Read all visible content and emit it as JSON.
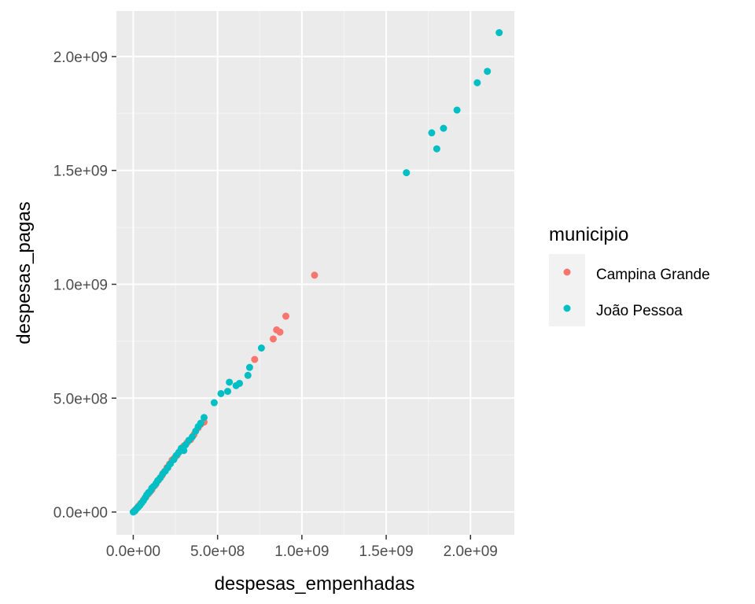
{
  "chart_data": {
    "type": "scatter",
    "title": "",
    "xlabel": "despesas_empenhadas",
    "ylabel": "despesas_pagas",
    "xlim": [
      -100000000.0,
      2260000000.0
    ],
    "ylim": [
      -100000000.0,
      2200000000.0
    ],
    "x_ticks": [
      0,
      500000000,
      1000000000,
      1500000000,
      2000000000
    ],
    "x_tick_labels": [
      "0.0e+00",
      "5.0e+08",
      "1.0e+09",
      "1.5e+09",
      "2.0e+09"
    ],
    "y_ticks": [
      0,
      500000000,
      1000000000,
      1500000000,
      2000000000
    ],
    "y_tick_labels": [
      "0.0e+00",
      "5.0e+08",
      "1.0e+09",
      "1.5e+09",
      "2.0e+09"
    ],
    "grid": true,
    "legend_title": "municipio",
    "legend_position": "right",
    "series": [
      {
        "name": "Campina Grande",
        "color": "#F8766D",
        "points": [
          [
            5000000,
            3000000
          ],
          [
            12000000,
            9000000
          ],
          [
            20000000,
            15000000
          ],
          [
            30000000,
            25000000
          ],
          [
            45000000,
            38000000
          ],
          [
            60000000,
            52000000
          ],
          [
            75000000,
            66000000
          ],
          [
            90000000,
            80000000
          ],
          [
            110000000,
            98000000
          ],
          [
            130000000,
            118000000
          ],
          [
            150000000,
            140000000
          ],
          [
            170000000,
            160000000
          ],
          [
            185000000,
            178000000
          ],
          [
            200000000,
            195000000
          ],
          [
            215000000,
            210000000
          ],
          [
            230000000,
            228000000
          ],
          [
            245000000,
            238000000
          ],
          [
            260000000,
            250000000
          ],
          [
            280000000,
            270000000
          ],
          [
            300000000,
            290000000
          ],
          [
            320000000,
            305000000
          ],
          [
            340000000,
            318000000
          ],
          [
            360000000,
            340000000
          ],
          [
            385000000,
            370000000
          ],
          [
            400000000,
            385000000
          ],
          [
            420000000,
            395000000
          ],
          [
            720000000,
            670000000
          ],
          [
            830000000,
            760000000
          ],
          [
            850000000,
            800000000
          ],
          [
            870000000,
            790000000
          ],
          [
            905000000,
            860000000
          ],
          [
            1075000000,
            1040000000
          ]
        ]
      },
      {
        "name": "João Pessoa",
        "color": "#00BFC4",
        "points": [
          [
            0,
            0
          ],
          [
            10000000,
            5000000
          ],
          [
            20000000,
            15000000
          ],
          [
            30000000,
            22000000
          ],
          [
            40000000,
            30000000
          ],
          [
            50000000,
            40000000
          ],
          [
            60000000,
            50000000
          ],
          [
            70000000,
            62000000
          ],
          [
            80000000,
            75000000
          ],
          [
            90000000,
            85000000
          ],
          [
            100000000,
            90000000
          ],
          [
            110000000,
            105000000
          ],
          [
            120000000,
            112000000
          ],
          [
            135000000,
            125000000
          ],
          [
            145000000,
            138000000
          ],
          [
            160000000,
            150000000
          ],
          [
            175000000,
            168000000
          ],
          [
            190000000,
            180000000
          ],
          [
            205000000,
            195000000
          ],
          [
            220000000,
            212000000
          ],
          [
            240000000,
            230000000
          ],
          [
            255000000,
            248000000
          ],
          [
            270000000,
            262000000
          ],
          [
            285000000,
            280000000
          ],
          [
            300000000,
            270000000
          ],
          [
            310000000,
            295000000
          ],
          [
            330000000,
            315000000
          ],
          [
            350000000,
            330000000
          ],
          [
            370000000,
            355000000
          ],
          [
            385000000,
            375000000
          ],
          [
            400000000,
            390000000
          ],
          [
            420000000,
            415000000
          ],
          [
            480000000,
            480000000
          ],
          [
            520000000,
            520000000
          ],
          [
            560000000,
            530000000
          ],
          [
            570000000,
            570000000
          ],
          [
            610000000,
            555000000
          ],
          [
            630000000,
            565000000
          ],
          [
            680000000,
            600000000
          ],
          [
            690000000,
            635000000
          ],
          [
            760000000,
            720000000
          ],
          [
            1620000000,
            1490000000
          ],
          [
            1770000000,
            1665000000
          ],
          [
            1800000000,
            1595000000
          ],
          [
            1840000000,
            1685000000
          ],
          [
            1920000000,
            1765000000
          ],
          [
            2040000000,
            1885000000
          ],
          [
            2100000000,
            1935000000
          ],
          [
            2170000000,
            2105000000
          ]
        ]
      }
    ]
  }
}
